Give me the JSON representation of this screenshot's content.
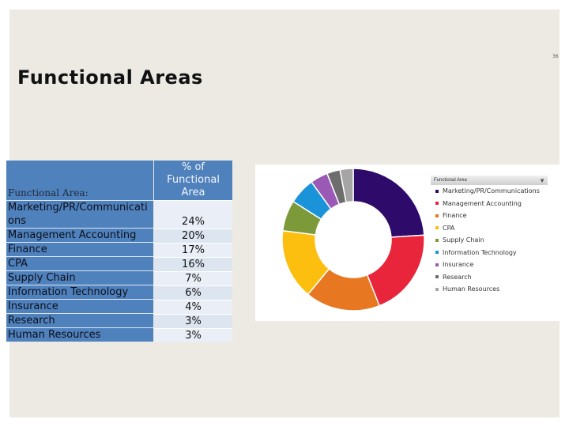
{
  "page_number": "36",
  "title": "Functional Areas",
  "table": {
    "col1_header": "Functional Area:",
    "col2_header": "% of Functional Area",
    "rows": [
      {
        "area": "Marketing/PR/Communications",
        "pct": "24%"
      },
      {
        "area": "Management Accounting",
        "pct": "20%"
      },
      {
        "area": "Finance",
        "pct": "17%"
      },
      {
        "area": "CPA",
        "pct": "16%"
      },
      {
        "area": "Supply Chain",
        "pct": "7%"
      },
      {
        "area": "Information Technology",
        "pct": "6%"
      },
      {
        "area": "Insurance",
        "pct": "4%"
      },
      {
        "area": "Research",
        "pct": "3%"
      },
      {
        "area": "Human Resources",
        "pct": "3%"
      }
    ]
  },
  "chart_data": {
    "type": "pie",
    "title": "",
    "legend_title": "Functional Area",
    "legend_position": "right",
    "donut": true,
    "categories": [
      "Marketing/PR/Communications",
      "Management Accounting",
      "Finance",
      "CPA",
      "Supply Chain",
      "Information Technology",
      "Insurance",
      "Research",
      "Human Resources"
    ],
    "values": [
      24,
      20,
      17,
      16,
      7,
      6,
      4,
      3,
      3
    ],
    "colors": [
      "#2e0a6b",
      "#e8253a",
      "#e87722",
      "#fdbf0f",
      "#7d9a3a",
      "#1a93d8",
      "#9b59b6",
      "#6d6d6d",
      "#a5a5a5"
    ]
  }
}
